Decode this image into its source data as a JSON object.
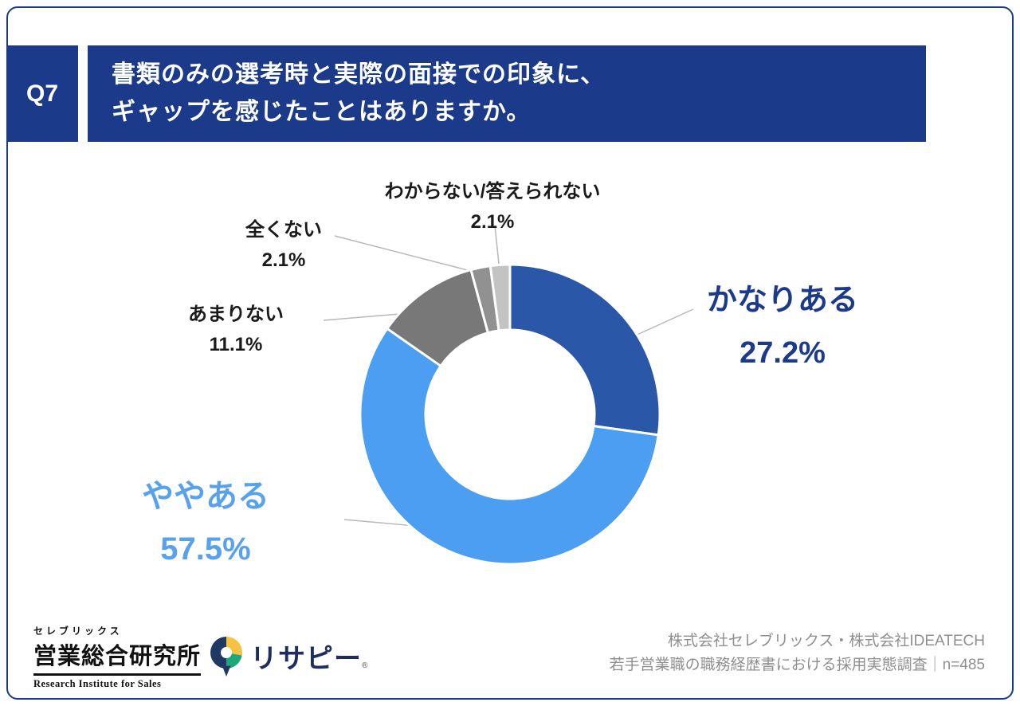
{
  "header": {
    "q_label": "Q7",
    "title_line1": "書類のみの選考時と実際の面接での印象に、",
    "title_line2": "ギャップを感じたことはありますか。"
  },
  "chart_data": {
    "type": "pie",
    "subtype": "donut",
    "unit": "%",
    "direction": "clockwise",
    "start_angle_deg": 0,
    "title": "書類のみの選考時と実際の面接での印象に、ギャップを感じたことはありますか。",
    "segments": [
      {
        "label": "かなりある",
        "value": 27.2,
        "pct": "27.2%",
        "color": "#2a57a7"
      },
      {
        "label": "ややある",
        "value": 57.5,
        "pct": "57.5%",
        "color": "#4b9ef2"
      },
      {
        "label": "あまりない",
        "value": 11.1,
        "pct": "11.1%",
        "color": "#787878"
      },
      {
        "label": "全くない",
        "value": 2.1,
        "pct": "2.1%",
        "color": "#919191"
      },
      {
        "label": "わからない/答えられない",
        "value": 2.1,
        "pct": "2.1%",
        "color": "#c3c3c3"
      }
    ]
  },
  "footer": {
    "logo_research": {
      "top": "セレブリックス",
      "main": "営業総合研究所",
      "sub": "Research Institute for Sales"
    },
    "logo_resapy": {
      "text": "リサピー",
      "mark": "®"
    },
    "source_line1": "株式会社セレブリックス・株式会社IDEATECH",
    "source_line2": "若手営業職の職務経歴書における採用実態調査｜n=485"
  },
  "colors": {
    "header_bg": "#1b3a8a",
    "accent_dark_blue": "#1b3a8a",
    "accent_light_blue": "#58a1ec"
  }
}
